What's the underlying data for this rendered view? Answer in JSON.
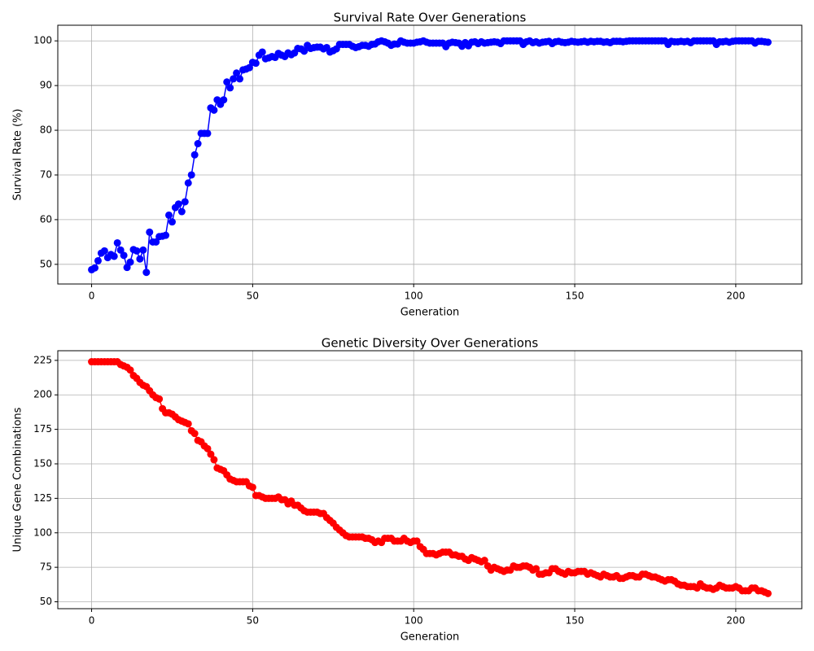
{
  "chart_data": [
    {
      "type": "line",
      "title": "Survival Rate Over Generations",
      "x_label": "Generation",
      "y_label": "Survival Rate (%)",
      "series": [
        {
          "color": "#0000ff",
          "x": [
            0,
            1,
            2,
            3,
            4,
            5,
            6,
            7,
            8,
            9,
            10,
            11,
            12,
            13,
            14,
            15,
            16,
            17,
            18,
            19,
            20,
            21,
            22,
            23,
            24,
            25,
            26,
            27,
            28,
            29,
            30,
            31,
            32,
            33,
            34,
            35,
            36,
            37,
            38,
            39,
            40,
            41,
            42,
            43,
            44,
            45,
            46,
            47,
            48,
            49,
            50,
            51,
            52,
            53,
            54,
            55,
            56,
            57,
            58,
            59,
            60,
            61,
            62,
            63,
            64,
            65,
            66,
            67,
            68,
            69,
            70,
            71,
            72,
            73,
            74,
            75,
            76,
            77,
            78,
            79,
            80,
            81,
            82,
            83,
            84,
            85,
            86,
            87,
            88,
            89,
            90,
            91,
            92,
            93,
            94,
            95,
            96,
            97,
            98,
            99,
            100,
            101,
            102,
            103,
            104,
            105,
            106,
            107,
            108,
            109,
            110,
            111,
            112,
            113,
            114,
            115,
            116,
            117,
            118,
            119,
            120,
            121,
            122,
            123,
            124,
            125,
            126,
            127,
            128,
            129,
            130,
            131,
            132,
            133,
            134,
            135,
            136,
            137,
            138,
            139,
            140,
            141,
            142,
            143,
            144,
            145,
            146,
            147,
            148,
            149,
            150,
            151,
            152,
            153,
            154,
            155,
            156,
            157,
            158,
            159,
            160,
            161,
            162,
            163,
            164,
            165,
            166,
            167,
            168,
            169,
            170,
            171,
            172,
            173,
            174,
            175,
            176,
            177,
            178,
            179,
            180,
            181,
            182,
            183,
            184,
            185,
            186,
            187,
            188,
            189,
            190,
            191,
            192,
            193,
            194,
            195,
            196,
            197,
            198,
            199,
            200,
            201,
            202,
            203,
            204,
            205,
            206,
            207,
            208,
            209,
            210
          ],
          "values": [
            48.8,
            49.2,
            50.8,
            52.5,
            53,
            51.5,
            52.2,
            51.8,
            54.8,
            53.2,
            52,
            49.3,
            50.5,
            53.3,
            53,
            51.2,
            53.2,
            48.2,
            57.2,
            55,
            55,
            56.2,
            56.3,
            56.5,
            61,
            59.5,
            62.7,
            63.5,
            61.8,
            64,
            68.2,
            70,
            74.5,
            77,
            79.3,
            79.3,
            79.3,
            85,
            84.5,
            86.8,
            85.8,
            86.8,
            90.8,
            89.5,
            91.5,
            92.8,
            91.5,
            93.5,
            93.7,
            94,
            95.2,
            95,
            96.8,
            97.5,
            96,
            96.2,
            96.5,
            96.3,
            97.2,
            96.8,
            96.5,
            97.3,
            96.9,
            97.3,
            98.3,
            98.2,
            97.7,
            99,
            98.3,
            98.5,
            98.6,
            98.6,
            98.2,
            98.5,
            97.5,
            97.8,
            98.2,
            99.2,
            99.2,
            99.2,
            99.2,
            98.8,
            98.5,
            98.7,
            99,
            99,
            98.8,
            99.2,
            99.3,
            99.8,
            100,
            99.8,
            99.5,
            99,
            99.3,
            99.3,
            100,
            99.7,
            99.5,
            99.5,
            99.5,
            99.7,
            99.8,
            100,
            99.7,
            99.5,
            99.5,
            99.5,
            99.5,
            99.5,
            98.7,
            99.5,
            99.7,
            99.6,
            99.5,
            98.8,
            99.6,
            98.9,
            99.7,
            99.8,
            99.4,
            99.8,
            99.5,
            99.6,
            99.7,
            99.8,
            99.7,
            99.4,
            100,
            100,
            100,
            100,
            100,
            100,
            99.2,
            99.8,
            100,
            99.6,
            99.8,
            99.5,
            99.7,
            99.8,
            99.9,
            99.4,
            99.8,
            99.9,
            99.7,
            99.6,
            99.7,
            99.9,
            99.8,
            99.7,
            99.8,
            99.9,
            99.7,
            99.9,
            99.8,
            99.9,
            99.9,
            99.7,
            99.8,
            99.6,
            99.9,
            99.9,
            99.9,
            99.8,
            99.9,
            100,
            100,
            100,
            100,
            100,
            100,
            100,
            100,
            100,
            100,
            100,
            100,
            99.2,
            99.9,
            99.8,
            99.8,
            99.9,
            99.8,
            99.9,
            99.6,
            100,
            100,
            100,
            100,
            100,
            100,
            100,
            99.2,
            99.8,
            99.8,
            99.9,
            99.7,
            99.9,
            100,
            100,
            100,
            100,
            100,
            100,
            99.5,
            99.9,
            99.9,
            99.8,
            99.7
          ]
        }
      ],
      "xlim": [
        -10.5,
        220.5
      ],
      "xticks": [
        0,
        50,
        100,
        150,
        200
      ],
      "ylim": [
        45.6,
        103.5
      ],
      "yticks": [
        50,
        60,
        70,
        80,
        90,
        100
      ],
      "grid": true
    },
    {
      "type": "line",
      "title": "Genetic Diversity Over Generations",
      "x_label": "Generation",
      "y_label": "Unique Gene Combinations",
      "series": [
        {
          "color": "#ff0000",
          "x": [
            0,
            1,
            2,
            3,
            4,
            5,
            6,
            7,
            8,
            9,
            10,
            11,
            12,
            13,
            14,
            15,
            16,
            17,
            18,
            19,
            20,
            21,
            22,
            23,
            24,
            25,
            26,
            27,
            28,
            29,
            30,
            31,
            32,
            33,
            34,
            35,
            36,
            37,
            38,
            39,
            40,
            41,
            42,
            43,
            44,
            45,
            46,
            47,
            48,
            49,
            50,
            51,
            52,
            53,
            54,
            55,
            56,
            57,
            58,
            59,
            60,
            61,
            62,
            63,
            64,
            65,
            66,
            67,
            68,
            69,
            70,
            71,
            72,
            73,
            74,
            75,
            76,
            77,
            78,
            79,
            80,
            81,
            82,
            83,
            84,
            85,
            86,
            87,
            88,
            89,
            90,
            91,
            92,
            93,
            94,
            95,
            96,
            97,
            98,
            99,
            100,
            101,
            102,
            103,
            104,
            105,
            106,
            107,
            108,
            109,
            110,
            111,
            112,
            113,
            114,
            115,
            116,
            117,
            118,
            119,
            120,
            121,
            122,
            123,
            124,
            125,
            126,
            127,
            128,
            129,
            130,
            131,
            132,
            133,
            134,
            135,
            136,
            137,
            138,
            139,
            140,
            141,
            142,
            143,
            144,
            145,
            146,
            147,
            148,
            149,
            150,
            151,
            152,
            153,
            154,
            155,
            156,
            157,
            158,
            159,
            160,
            161,
            162,
            163,
            164,
            165,
            166,
            167,
            168,
            169,
            170,
            171,
            172,
            173,
            174,
            175,
            176,
            177,
            178,
            179,
            180,
            181,
            182,
            183,
            184,
            185,
            186,
            187,
            188,
            189,
            190,
            191,
            192,
            193,
            194,
            195,
            196,
            197,
            198,
            199,
            200,
            201,
            202,
            203,
            204,
            205,
            206,
            207,
            208,
            209,
            210
          ],
          "values": [
            224,
            224,
            224,
            224,
            224,
            224,
            224,
            224,
            224,
            222,
            221,
            220,
            218,
            214,
            212,
            209,
            207,
            206,
            203,
            200,
            198,
            197,
            190,
            187,
            187,
            186,
            184,
            182,
            181,
            180,
            179,
            174,
            172,
            167,
            166,
            163,
            161,
            157,
            153,
            147,
            146,
            145,
            142,
            139,
            138,
            137,
            137,
            137,
            137,
            134,
            133,
            127,
            127,
            126,
            125,
            125,
            125,
            125,
            126,
            124,
            124,
            121,
            123,
            120,
            120,
            118,
            116,
            115,
            115,
            115,
            115,
            114,
            114,
            111,
            109,
            107,
            104,
            102,
            100,
            98,
            97,
            97,
            97,
            97,
            97,
            96,
            96,
            95,
            93,
            94,
            93,
            96,
            96,
            96,
            94,
            94,
            94,
            96,
            94,
            93,
            94,
            94,
            90,
            88,
            85,
            85,
            85,
            84,
            85,
            86,
            86,
            86,
            84,
            84,
            83,
            83,
            81,
            80,
            82,
            81,
            80,
            79,
            80,
            76,
            73,
            75,
            74,
            73,
            72,
            73,
            73,
            76,
            75,
            75,
            76,
            76,
            75,
            73,
            74,
            70,
            70,
            71,
            71,
            74,
            74,
            72,
            71,
            70,
            72,
            71,
            71,
            72,
            72,
            72,
            70,
            71,
            70,
            69,
            68,
            70,
            69,
            68,
            68,
            69,
            67,
            67,
            68,
            69,
            69,
            68,
            68,
            70,
            70,
            69,
            68,
            68,
            67,
            66,
            65,
            66,
            66,
            65,
            63,
            62,
            62,
            61,
            61,
            61,
            60,
            63,
            61,
            60,
            60,
            59,
            60,
            62,
            61,
            60,
            60,
            60,
            61,
            60,
            58,
            58,
            58,
            60,
            60,
            58,
            58,
            57,
            56
          ]
        }
      ],
      "xlim": [
        -10.5,
        220.5
      ],
      "xticks": [
        0,
        50,
        100,
        150,
        200
      ],
      "ylim": [
        45,
        232
      ],
      "yticks": [
        50,
        75,
        100,
        125,
        150,
        175,
        200,
        225
      ],
      "grid": true
    }
  ]
}
